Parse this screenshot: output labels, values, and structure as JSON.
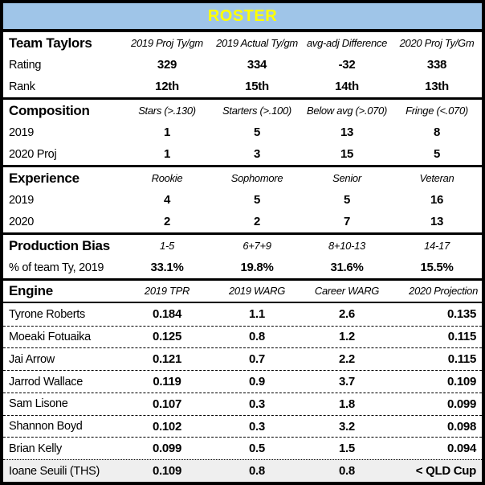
{
  "banner": {
    "title": "ROSTER"
  },
  "colors": {
    "banner_bg": "#9FC5E8",
    "banner_title": "#FFFF00",
    "highlight_row_bg": "#EFEFEF",
    "border": "#000000",
    "text": "#000000"
  },
  "sections": [
    {
      "name": "Team Taylors",
      "columns": [
        "2019 Proj Ty/gm",
        "2019 Actual Ty/gm",
        "avg-adj Difference",
        "2020 Proj Ty/Gm"
      ],
      "rows": [
        {
          "label": "Rating",
          "values": [
            "329",
            "334",
            "-32",
            "338"
          ]
        },
        {
          "label": "Rank",
          "values": [
            "12th",
            "15th",
            "14th",
            "13th"
          ]
        }
      ]
    },
    {
      "name": "Composition",
      "columns": [
        "Stars (>.130)",
        "Starters (>.100)",
        "Below avg (>.070)",
        "Fringe (<.070)"
      ],
      "rows": [
        {
          "label": "2019",
          "values": [
            "1",
            "5",
            "13",
            "8"
          ]
        },
        {
          "label": "2020 Proj",
          "values": [
            "1",
            "3",
            "15",
            "5"
          ]
        }
      ]
    },
    {
      "name": "Experience",
      "columns": [
        "Rookie",
        "Sophomore",
        "Senior",
        "Veteran"
      ],
      "rows": [
        {
          "label": "2019",
          "values": [
            "4",
            "5",
            "5",
            "16"
          ]
        },
        {
          "label": "2020",
          "values": [
            "2",
            "2",
            "7",
            "13"
          ]
        }
      ]
    },
    {
      "name": "Production Bias",
      "columns": [
        "1-5",
        "6+7+9",
        "8+10-13",
        "14-17"
      ],
      "rows": [
        {
          "label": "% of team Ty, 2019",
          "values": [
            "33.1%",
            "19.8%",
            "31.6%",
            "15.5%"
          ]
        }
      ]
    },
    {
      "name": "Engine",
      "columns": [
        "2019 TPR",
        "2019 WARG",
        "Career WARG",
        "2020 Projection"
      ],
      "rows": [
        {
          "label": "Tyrone Roberts",
          "values": [
            "0.184",
            "1.1",
            "2.6",
            "0.135"
          ]
        },
        {
          "label": "Moeaki Fotuaika",
          "values": [
            "0.125",
            "0.8",
            "1.2",
            "0.115"
          ]
        },
        {
          "label": "Jai Arrow",
          "values": [
            "0.121",
            "0.7",
            "2.2",
            "0.115"
          ]
        },
        {
          "label": "Jarrod Wallace",
          "values": [
            "0.119",
            "0.9",
            "3.7",
            "0.109"
          ]
        },
        {
          "label": "Sam Lisone",
          "values": [
            "0.107",
            "0.3",
            "1.8",
            "0.099"
          ]
        },
        {
          "label": "Shannon Boyd",
          "values": [
            "0.102",
            "0.3",
            "3.2",
            "0.098"
          ]
        },
        {
          "label": "Brian Kelly",
          "values": [
            "0.099",
            "0.5",
            "1.5",
            "0.094"
          ]
        },
        {
          "label": "Ioane Seuili (THS)",
          "values": [
            "0.109",
            "0.8",
            "0.8",
            "< QLD Cup"
          ]
        }
      ]
    }
  ]
}
